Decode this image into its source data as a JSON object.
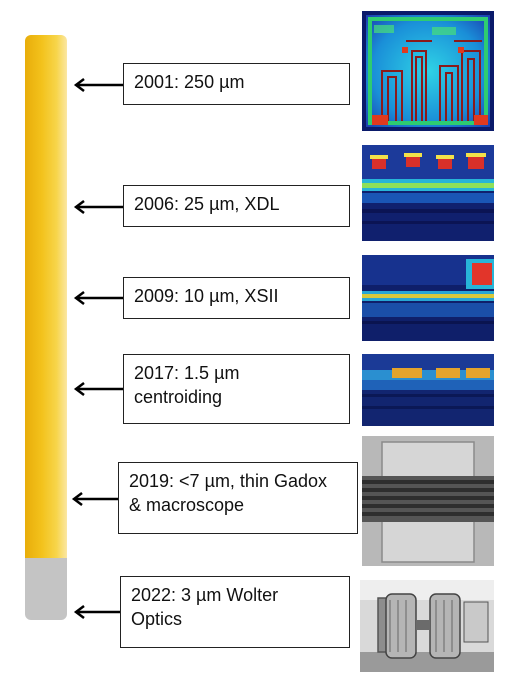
{
  "timeline": [
    {
      "label": "2001: 250 µm"
    },
    {
      "label": "2006: 25 µm, XDL"
    },
    {
      "label": "2009: 10 µm, XSII"
    },
    {
      "label": "2017: 1.5 µm",
      "label2": "centroiding"
    },
    {
      "label": "2019: <7 µm, thin Gadox",
      "label2": "& macroscope"
    },
    {
      "label": "2022: 3 µm  Wolter",
      "label2": "Optics"
    }
  ],
  "images": [
    {
      "icon": "heatmap-detector-pattern-image"
    },
    {
      "icon": "heatmap-line-image"
    },
    {
      "icon": "heatmap-line-image"
    },
    {
      "icon": "heatmap-line-image"
    },
    {
      "icon": "grayscale-bars-image"
    },
    {
      "icon": "wolter-optics-photo"
    }
  ],
  "colors": {
    "gold": "#f3c21c",
    "grey": "#c4c4c4",
    "arrow": "#000000"
  }
}
